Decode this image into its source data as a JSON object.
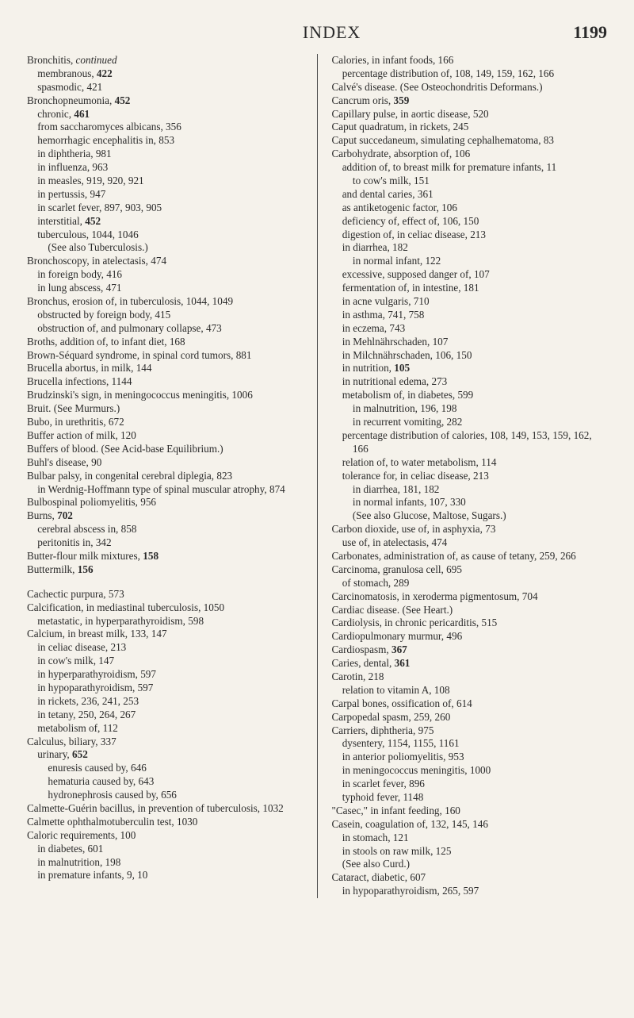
{
  "header": {
    "title": "INDEX",
    "pageNumber": "1199"
  },
  "columns": {
    "left": [
      {
        "t": "Bronchitis, <em>continued</em>"
      },
      {
        "t": "membranous, <b>422</b>",
        "i": 1
      },
      {
        "t": "spasmodic, 421",
        "i": 1
      },
      {
        "t": "Bronchopneumonia, <b>452</b>"
      },
      {
        "t": "chronic, <b>461</b>",
        "i": 1
      },
      {
        "t": "from saccharomyces albicans, 356",
        "i": 1
      },
      {
        "t": "hemorrhagic encephalitis in, 853",
        "i": 1
      },
      {
        "t": "in diphtheria, 981",
        "i": 1
      },
      {
        "t": "in influenza, 963",
        "i": 1
      },
      {
        "t": "in measles, 919, 920, 921",
        "i": 1
      },
      {
        "t": "in pertussis, 947",
        "i": 1
      },
      {
        "t": "in scarlet fever, 897, 903, 905",
        "i": 1
      },
      {
        "t": "interstitial, <b>452</b>",
        "i": 1
      },
      {
        "t": "tuberculous, 1044, 1046",
        "i": 1
      },
      {
        "t": "(See also Tuberculosis.)",
        "i": 2
      },
      {
        "t": "Bronchoscopy, in atelectasis, 474"
      },
      {
        "t": "in foreign body, 416",
        "i": 1
      },
      {
        "t": "in lung abscess, 471",
        "i": 1
      },
      {
        "t": "Bronchus, erosion of, in tuberculosis, 1044, 1049"
      },
      {
        "t": "obstructed by foreign body, 415",
        "i": 1
      },
      {
        "t": "obstruction of, and pulmonary collapse, 473",
        "i": 1
      },
      {
        "t": "Broths, addition of, to infant diet, 168"
      },
      {
        "t": "Brown-Séquard syndrome, in spinal cord tumors, 881"
      },
      {
        "t": "Brucella abortus, in milk, 144"
      },
      {
        "t": "Brucella infections, 1144"
      },
      {
        "t": "Brudzinski's sign, in meningococcus meningitis, 1006"
      },
      {
        "t": "Bruit. (See Murmurs.)"
      },
      {
        "t": "Bubo, in urethritis, 672"
      },
      {
        "t": "Buffer action of milk, 120"
      },
      {
        "t": "Buffers of blood. (See Acid-base Equilibrium.)"
      },
      {
        "t": "Buhl's disease, 90"
      },
      {
        "t": "Bulbar palsy, in congenital cerebral diplegia, 823"
      },
      {
        "t": "in Werdnig-Hoffmann type of spinal muscular atrophy, 874",
        "i": 1
      },
      {
        "t": "Bulbospinal poliomyelitis, 956"
      },
      {
        "t": "Burns, <b>702</b>"
      },
      {
        "t": "cerebral abscess in, 858",
        "i": 1
      },
      {
        "t": "peritonitis in, 342",
        "i": 1
      },
      {
        "t": "Butter-flour milk mixtures, <b>158</b>"
      },
      {
        "t": "Buttermilk, <b>156</b>"
      },
      {
        "t": "Cachectic purpura, 573",
        "gap": true
      },
      {
        "t": "Calcification, in mediastinal tuberculosis, 1050"
      },
      {
        "t": "metastatic, in hyperparathyroidism, 598",
        "i": 1
      },
      {
        "t": "Calcium, in breast milk, 133, 147"
      },
      {
        "t": "in celiac disease, 213",
        "i": 1
      },
      {
        "t": "in cow's milk, 147",
        "i": 1
      },
      {
        "t": "in hyperparathyroidism, 597",
        "i": 1
      },
      {
        "t": "in hypoparathyroidism, 597",
        "i": 1
      },
      {
        "t": "in rickets, 236, 241, 253",
        "i": 1
      },
      {
        "t": "in tetany, 250, 264, 267",
        "i": 1
      },
      {
        "t": "metabolism of, 112",
        "i": 1
      },
      {
        "t": "Calculus, biliary, 337"
      },
      {
        "t": "urinary, <b>652</b>",
        "i": 1
      },
      {
        "t": "enuresis caused by, 646",
        "i": 2
      },
      {
        "t": "hematuria caused by, 643",
        "i": 2
      },
      {
        "t": "hydronephrosis caused by, 656",
        "i": 2
      },
      {
        "t": "Calmette-Guérin bacillus, in prevention of tuberculosis, 1032"
      },
      {
        "t": "Calmette ophthalmotuberculin test, 1030"
      },
      {
        "t": "Caloric requirements, 100"
      },
      {
        "t": "in diabetes, 601",
        "i": 1
      },
      {
        "t": "in malnutrition, 198",
        "i": 1
      },
      {
        "t": "in premature infants, 9, 10",
        "i": 1
      }
    ],
    "right": [
      {
        "t": "Calories, in infant foods, 166"
      },
      {
        "t": "percentage distribution of, 108, 149, 159, 162, 166",
        "i": 1
      },
      {
        "t": "Calvé's disease. (See Osteochondritis Deformans.)"
      },
      {
        "t": "Cancrum oris, <b>359</b>"
      },
      {
        "t": "Capillary pulse, in aortic disease, 520"
      },
      {
        "t": "Caput quadratum, in rickets, 245"
      },
      {
        "t": "Caput succedaneum, simulating cephalhematoma, 83"
      },
      {
        "t": "Carbohydrate, absorption of, 106"
      },
      {
        "t": "addition of, to breast milk for premature infants, 11",
        "i": 1
      },
      {
        "t": "to cow's milk, 151",
        "i": 2
      },
      {
        "t": "and dental caries, 361",
        "i": 1
      },
      {
        "t": "as antiketogenic factor, 106",
        "i": 1
      },
      {
        "t": "deficiency of, effect of, 106, 150",
        "i": 1
      },
      {
        "t": "digestion of, in celiac disease, 213",
        "i": 1
      },
      {
        "t": "in diarrhea, 182",
        "i": 1
      },
      {
        "t": "in normal infant, 122",
        "i": 2
      },
      {
        "t": "excessive, supposed danger of, 107",
        "i": 1
      },
      {
        "t": "fermentation of, in intestine, 181",
        "i": 1
      },
      {
        "t": "in acne vulgaris, 710",
        "i": 1
      },
      {
        "t": "in asthma, 741, 758",
        "i": 1
      },
      {
        "t": "in eczema, 743",
        "i": 1
      },
      {
        "t": "in Mehlnährschaden, 107",
        "i": 1
      },
      {
        "t": "in Milchnährschaden, 106, 150",
        "i": 1
      },
      {
        "t": "in nutrition, <b>105</b>",
        "i": 1
      },
      {
        "t": "in nutritional edema, 273",
        "i": 1
      },
      {
        "t": "metabolism of, in diabetes, 599",
        "i": 1
      },
      {
        "t": "in malnutrition, 196, 198",
        "i": 2
      },
      {
        "t": "in recurrent vomiting, 282",
        "i": 2
      },
      {
        "t": "percentage distribution of calories, 108, 149, 153, 159, 162, 166",
        "i": 1
      },
      {
        "t": "relation of, to water metabolism, 114",
        "i": 1
      },
      {
        "t": "tolerance for, in celiac disease, 213",
        "i": 1
      },
      {
        "t": "in diarrhea, 181, 182",
        "i": 2
      },
      {
        "t": "in normal infants, 107, 330",
        "i": 2
      },
      {
        "t": "(See also Glucose, Maltose, Sugars.)",
        "i": 2
      },
      {
        "t": "Carbon dioxide, use of, in asphyxia, 73"
      },
      {
        "t": "use of, in atelectasis, 474",
        "i": 1
      },
      {
        "t": "Carbonates, administration of, as cause of tetany, 259, 266"
      },
      {
        "t": "Carcinoma, granulosa cell, 695"
      },
      {
        "t": "of stomach, 289",
        "i": 1
      },
      {
        "t": "Carcinomatosis, in xeroderma pigmentosum, 704"
      },
      {
        "t": "Cardiac disease. (See Heart.)"
      },
      {
        "t": "Cardiolysis, in chronic pericarditis, 515"
      },
      {
        "t": "Cardiopulmonary murmur, 496"
      },
      {
        "t": "Cardiospasm, <b>367</b>"
      },
      {
        "t": "Caries, dental, <b>361</b>"
      },
      {
        "t": "Carotin, 218"
      },
      {
        "t": "relation to vitamin A, 108",
        "i": 1
      },
      {
        "t": "Carpal bones, ossification of, 614"
      },
      {
        "t": "Carpopedal spasm, 259, 260"
      },
      {
        "t": "Carriers, diphtheria, 975"
      },
      {
        "t": "dysentery, 1154, 1155, 1161",
        "i": 1
      },
      {
        "t": "in anterior poliomyelitis, 953",
        "i": 1
      },
      {
        "t": "in meningococcus meningitis, 1000",
        "i": 1
      },
      {
        "t": "in scarlet fever, 896",
        "i": 1
      },
      {
        "t": "typhoid fever, 1148",
        "i": 1
      },
      {
        "t": "\"Casec,\" in infant feeding, 160"
      },
      {
        "t": "Casein, coagulation of, 132, 145, 146"
      },
      {
        "t": "in stomach, 121",
        "i": 1
      },
      {
        "t": "in stools on raw milk, 125",
        "i": 1
      },
      {
        "t": "(See also Curd.)",
        "i": 1
      },
      {
        "t": "Cataract, diabetic, 607"
      },
      {
        "t": "in hypoparathyroidism, 265, 597",
        "i": 1
      }
    ]
  }
}
